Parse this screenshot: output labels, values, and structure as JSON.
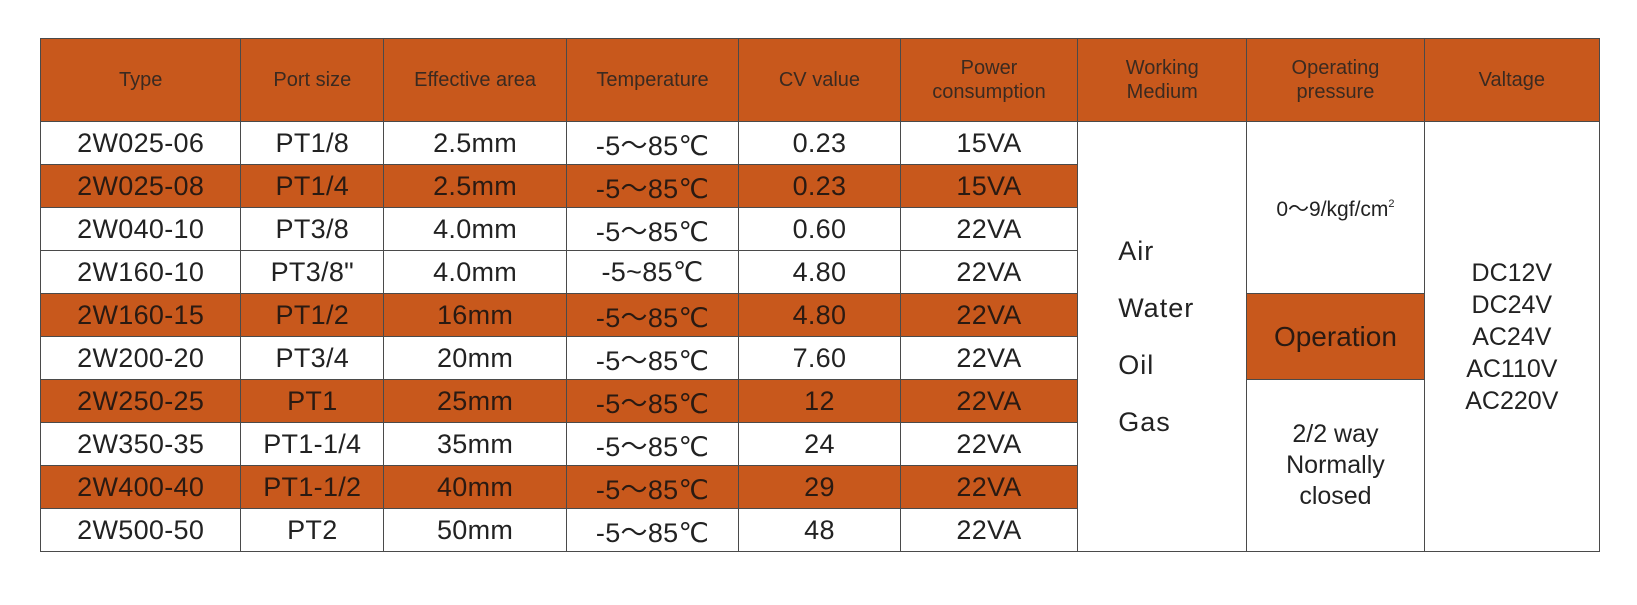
{
  "headers": [
    [
      "Type"
    ],
    [
      "Port size"
    ],
    [
      "Effective area"
    ],
    [
      "Temperature"
    ],
    [
      "CV value"
    ],
    [
      "Power",
      "consumption"
    ],
    [
      "Working",
      "Medium"
    ],
    [
      "Operating",
      "pressure"
    ],
    [
      "Valtage"
    ]
  ],
  "rows": [
    {
      "type": "2W025-06",
      "port": "PT1/8",
      "area": "2.5mm",
      "temp": "-5～85℃",
      "cv": "0.23",
      "power": "15VA",
      "highlight": false
    },
    {
      "type": "2W025-08",
      "port": "PT1/4",
      "area": "2.5mm",
      "temp": "-5～85℃",
      "cv": "0.23",
      "power": "15VA",
      "highlight": true
    },
    {
      "type": "2W040-10",
      "port": "PT3/8",
      "area": "4.0mm",
      "temp": "-5～85℃",
      "cv": "0.60",
      "power": "22VA",
      "highlight": false
    },
    {
      "type": "2W160-10",
      "port": "PT3/8\"",
      "area": "4.0mm",
      "temp": "-5~85℃",
      "cv": "4.80",
      "power": "22VA",
      "highlight": false
    },
    {
      "type": "2W160-15",
      "port": "PT1/2",
      "area": "16mm",
      "temp": "-5～85℃",
      "cv": "4.80",
      "power": "22VA",
      "highlight": true
    },
    {
      "type": "2W200-20",
      "port": "PT3/4",
      "area": "20mm",
      "temp": "-5～85℃",
      "cv": "7.60",
      "power": "22VA",
      "highlight": false
    },
    {
      "type": "2W250-25",
      "port": "PT1",
      "area": "25mm",
      "temp": "-5～85℃",
      "cv": "12",
      "power": "22VA",
      "highlight": true
    },
    {
      "type": "2W350-35",
      "port": "PT1-1/4",
      "area": "35mm",
      "temp": "-5～85℃",
      "cv": "24",
      "power": "22VA",
      "highlight": false
    },
    {
      "type": "2W400-40",
      "port": "PT1-1/2",
      "area": "40mm",
      "temp": "-5～85℃",
      "cv": "29",
      "power": "22VA",
      "highlight": true
    },
    {
      "type": "2W500-50",
      "port": "PT2",
      "area": "50mm",
      "temp": "-5～85℃",
      "cv": "48",
      "power": "22VA",
      "highlight": false
    }
  ],
  "working_medium": [
    "Air",
    "Water",
    "Oil",
    "Gas"
  ],
  "operating_pressure": {
    "value": "0～9/kgf/cm",
    "superscript": "2"
  },
  "operation": {
    "label": "Operation",
    "lines": [
      "2/2 way",
      "Normally",
      "closed"
    ]
  },
  "voltage": [
    "DC12V",
    "DC24V",
    "AC24V",
    "AC110V",
    "AC220V"
  ],
  "colors": {
    "accent": "#c8581c",
    "border": "#4a4a4a",
    "background": "#ffffff"
  }
}
